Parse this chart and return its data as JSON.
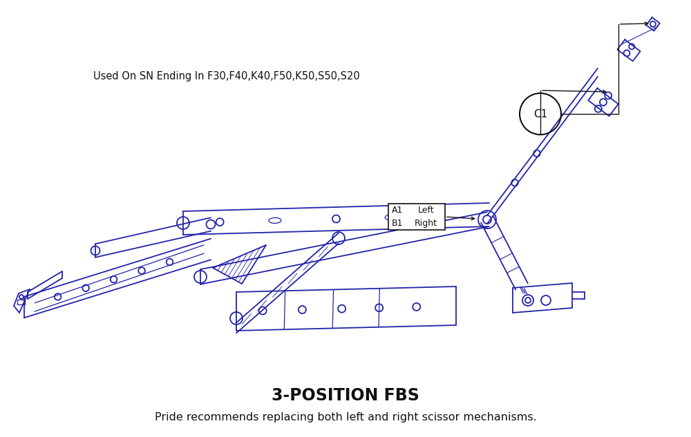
{
  "bg_color": "#ffffff",
  "dc": "#2222aa",
  "lc": "#111111",
  "title": "3-POSITION FBS",
  "subtitle": "Pride recommends replacing both left and right scissor mechanisms.",
  "note": "Used On SN Ending In F30,F40,K40,F50,K50,S50,S20",
  "title_fontsize": 17,
  "subtitle_fontsize": 11.5,
  "note_fontsize": 10.5,
  "label_A1": "A1",
  "label_Left": "Left",
  "label_B1": "B1",
  "label_Right": "Right",
  "label_C1": "C1",
  "figw": 10.0,
  "figh": 6.33
}
